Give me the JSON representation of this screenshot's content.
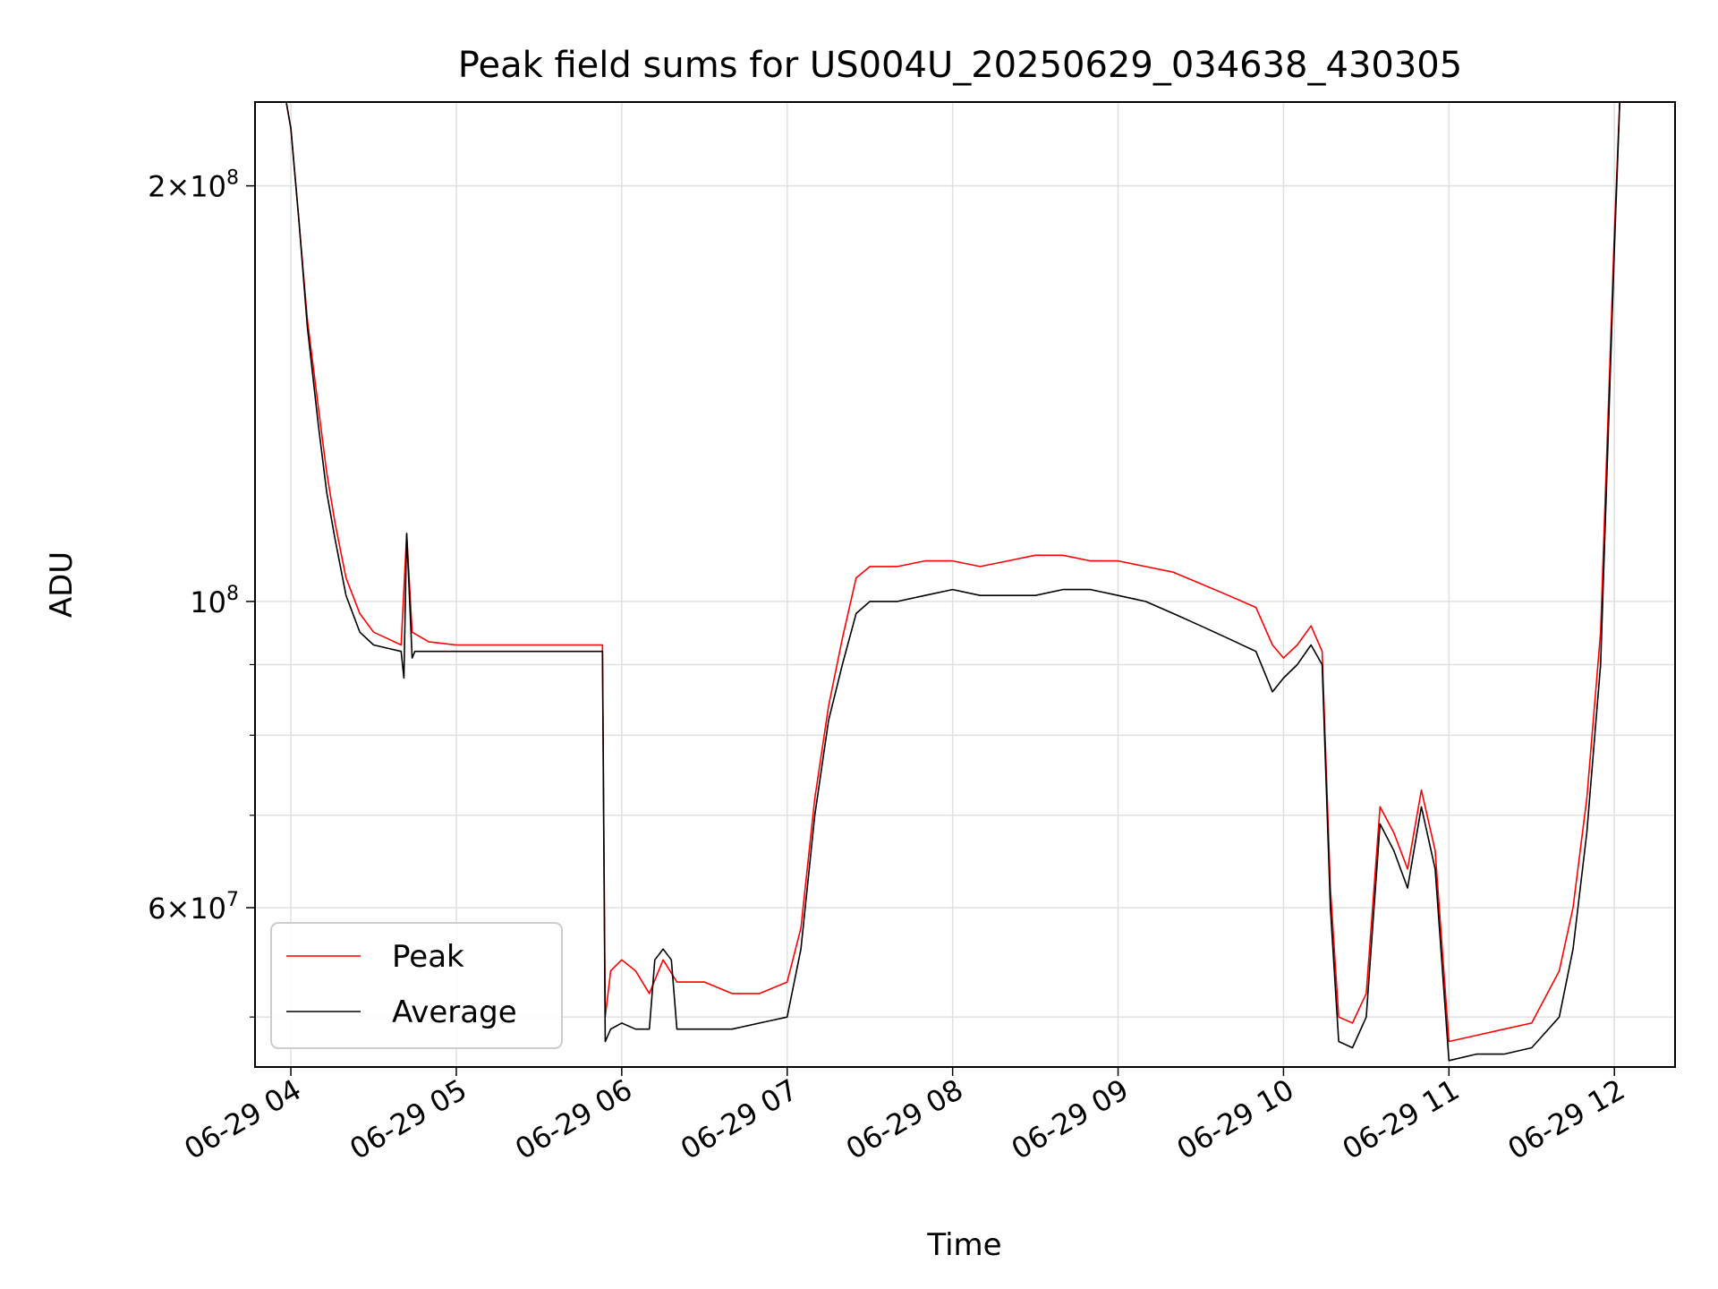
{
  "chart_data": {
    "type": "line",
    "title": "Peak field sums for US004U_20250629_034638_430305",
    "xlabel": "Time",
    "ylabel": "ADU",
    "y_scale": "log",
    "ylim": [
      46000000,
      230000000
    ],
    "xlim": [
      "2025-06-29 03:47",
      "2025-06-29 12:22"
    ],
    "grid": true,
    "legend_position": "lower-left",
    "x_ticks": [
      {
        "value": "2025-06-29 04:00",
        "label": "06-29 04"
      },
      {
        "value": "2025-06-29 05:00",
        "label": "06-29 05"
      },
      {
        "value": "2025-06-29 06:00",
        "label": "06-29 06"
      },
      {
        "value": "2025-06-29 07:00",
        "label": "06-29 07"
      },
      {
        "value": "2025-06-29 08:00",
        "label": "06-29 08"
      },
      {
        "value": "2025-06-29 09:00",
        "label": "06-29 09"
      },
      {
        "value": "2025-06-29 10:00",
        "label": "06-29 10"
      },
      {
        "value": "2025-06-29 11:00",
        "label": "06-29 11"
      },
      {
        "value": "2025-06-29 12:00",
        "label": "06-29 12"
      }
    ],
    "y_major_ticks": [
      {
        "value": 60000000,
        "label": "6 × 10^7",
        "mantissa": "6",
        "exp": "7"
      },
      {
        "value": 100000000,
        "label": "10^8",
        "mantissa": "",
        "exp": "8"
      },
      {
        "value": 200000000,
        "label": "2 × 10^8",
        "mantissa": "2",
        "exp": "8"
      }
    ],
    "y_minor_ticks": [
      50000000,
      70000000,
      80000000,
      90000000
    ],
    "series": [
      {
        "name": "Peak",
        "color": "#ff0000",
        "x": [
          "2025-06-29 03:58",
          "2025-06-29 04:00",
          "2025-06-29 04:03",
          "2025-06-29 04:06",
          "2025-06-29 04:10",
          "2025-06-29 04:13",
          "2025-06-29 04:16",
          "2025-06-29 04:20",
          "2025-06-29 04:25",
          "2025-06-29 04:30",
          "2025-06-29 04:35",
          "2025-06-29 04:40",
          "2025-06-29 04:42",
          "2025-06-29 04:44",
          "2025-06-29 04:50",
          "2025-06-29 05:00",
          "2025-06-29 05:10",
          "2025-06-29 05:20",
          "2025-06-29 05:30",
          "2025-06-29 05:40",
          "2025-06-29 05:50",
          "2025-06-29 05:53",
          "2025-06-29 05:54",
          "2025-06-29 05:56",
          "2025-06-29 06:00",
          "2025-06-29 06:05",
          "2025-06-29 06:10",
          "2025-06-29 06:15",
          "2025-06-29 06:20",
          "2025-06-29 06:25",
          "2025-06-29 06:30",
          "2025-06-29 06:40",
          "2025-06-29 06:50",
          "2025-06-29 07:00",
          "2025-06-29 07:05",
          "2025-06-29 07:10",
          "2025-06-29 07:15",
          "2025-06-29 07:20",
          "2025-06-29 07:25",
          "2025-06-29 07:30",
          "2025-06-29 07:40",
          "2025-06-29 07:50",
          "2025-06-29 08:00",
          "2025-06-29 08:10",
          "2025-06-29 08:20",
          "2025-06-29 08:30",
          "2025-06-29 08:40",
          "2025-06-29 08:50",
          "2025-06-29 09:00",
          "2025-06-29 09:10",
          "2025-06-29 09:20",
          "2025-06-29 09:30",
          "2025-06-29 09:40",
          "2025-06-29 09:50",
          "2025-06-29 09:56",
          "2025-06-29 10:00",
          "2025-06-29 10:05",
          "2025-06-29 10:10",
          "2025-06-29 10:14",
          "2025-06-29 10:17",
          "2025-06-29 10:20",
          "2025-06-29 10:25",
          "2025-06-29 10:30",
          "2025-06-29 10:35",
          "2025-06-29 10:40",
          "2025-06-29 10:45",
          "2025-06-29 10:50",
          "2025-06-29 10:55",
          "2025-06-29 11:00",
          "2025-06-29 11:10",
          "2025-06-29 11:20",
          "2025-06-29 11:30",
          "2025-06-29 11:40",
          "2025-06-29 11:45",
          "2025-06-29 11:50",
          "2025-06-29 11:55",
          "2025-06-29 12:00",
          "2025-06-29 12:02"
        ],
        "y": [
          232000000,
          220000000,
          188000000,
          160000000,
          138000000,
          124000000,
          114000000,
          104000000,
          98000000,
          95000000,
          94000000,
          93000000,
          112000000,
          95000000,
          93500000,
          93000000,
          93000000,
          93000000,
          93000000,
          93000000,
          93000000,
          93000000,
          50000000,
          54000000,
          55000000,
          54000000,
          52000000,
          55000000,
          53000000,
          53000000,
          53000000,
          52000000,
          52000000,
          53000000,
          58000000,
          72000000,
          84000000,
          94000000,
          104000000,
          106000000,
          106000000,
          107000000,
          107000000,
          106000000,
          107000000,
          108000000,
          108000000,
          107000000,
          107000000,
          106000000,
          105000000,
          103000000,
          101000000,
          99000000,
          93000000,
          91000000,
          93000000,
          96000000,
          92000000,
          62000000,
          50000000,
          49500000,
          52000000,
          71000000,
          68000000,
          64000000,
          73000000,
          66000000,
          48000000,
          48500000,
          49000000,
          49500000,
          54000000,
          60000000,
          72000000,
          95000000,
          185000000,
          232000000
        ]
      },
      {
        "name": "Average",
        "color": "#000000",
        "x": [
          "2025-06-29 03:58",
          "2025-06-29 04:00",
          "2025-06-29 04:03",
          "2025-06-29 04:06",
          "2025-06-29 04:10",
          "2025-06-29 04:13",
          "2025-06-29 04:16",
          "2025-06-29 04:20",
          "2025-06-29 04:25",
          "2025-06-29 04:30",
          "2025-06-29 04:35",
          "2025-06-29 04:40",
          "2025-06-29 04:41",
          "2025-06-29 04:42",
          "2025-06-29 04:44",
          "2025-06-29 04:45",
          "2025-06-29 04:50",
          "2025-06-29 05:00",
          "2025-06-29 05:10",
          "2025-06-29 05:20",
          "2025-06-29 05:30",
          "2025-06-29 05:40",
          "2025-06-29 05:50",
          "2025-06-29 05:53",
          "2025-06-29 05:54",
          "2025-06-29 05:56",
          "2025-06-29 06:00",
          "2025-06-29 06:05",
          "2025-06-29 06:10",
          "2025-06-29 06:12",
          "2025-06-29 06:15",
          "2025-06-29 06:18",
          "2025-06-29 06:20",
          "2025-06-29 06:25",
          "2025-06-29 06:30",
          "2025-06-29 06:40",
          "2025-06-29 06:50",
          "2025-06-29 07:00",
          "2025-06-29 07:05",
          "2025-06-29 07:10",
          "2025-06-29 07:15",
          "2025-06-29 07:20",
          "2025-06-29 07:25",
          "2025-06-29 07:30",
          "2025-06-29 07:40",
          "2025-06-29 07:50",
          "2025-06-29 08:00",
          "2025-06-29 08:10",
          "2025-06-29 08:20",
          "2025-06-29 08:30",
          "2025-06-29 08:40",
          "2025-06-29 08:50",
          "2025-06-29 09:00",
          "2025-06-29 09:10",
          "2025-06-29 09:20",
          "2025-06-29 09:30",
          "2025-06-29 09:40",
          "2025-06-29 09:50",
          "2025-06-29 09:56",
          "2025-06-29 10:00",
          "2025-06-29 10:05",
          "2025-06-29 10:10",
          "2025-06-29 10:14",
          "2025-06-29 10:17",
          "2025-06-29 10:20",
          "2025-06-29 10:25",
          "2025-06-29 10:30",
          "2025-06-29 10:35",
          "2025-06-29 10:40",
          "2025-06-29 10:45",
          "2025-06-29 10:50",
          "2025-06-29 10:55",
          "2025-06-29 11:00",
          "2025-06-29 11:10",
          "2025-06-29 11:20",
          "2025-06-29 11:30",
          "2025-06-29 11:40",
          "2025-06-29 11:45",
          "2025-06-29 11:50",
          "2025-06-29 11:55",
          "2025-06-29 12:00",
          "2025-06-29 12:02"
        ],
        "y": [
          232000000,
          220000000,
          188000000,
          158000000,
          134000000,
          120000000,
          111000000,
          101000000,
          95000000,
          93000000,
          92500000,
          92000000,
          88000000,
          112000000,
          91000000,
          92000000,
          92000000,
          92000000,
          92000000,
          92000000,
          92000000,
          92000000,
          92000000,
          92000000,
          48000000,
          49000000,
          49500000,
          49000000,
          49000000,
          55000000,
          56000000,
          55000000,
          49000000,
          49000000,
          49000000,
          49000000,
          49500000,
          50000000,
          56000000,
          70000000,
          82000000,
          90000000,
          98000000,
          100000000,
          100000000,
          101000000,
          102000000,
          101000000,
          101000000,
          101000000,
          102000000,
          102000000,
          101000000,
          100000000,
          98000000,
          96000000,
          94000000,
          92000000,
          86000000,
          88000000,
          90000000,
          93000000,
          90000000,
          60000000,
          48000000,
          47500000,
          50000000,
          69000000,
          66000000,
          62000000,
          71000000,
          64000000,
          46500000,
          47000000,
          47000000,
          47500000,
          50000000,
          56000000,
          68000000,
          90000000,
          180000000,
          232000000
        ]
      }
    ]
  }
}
